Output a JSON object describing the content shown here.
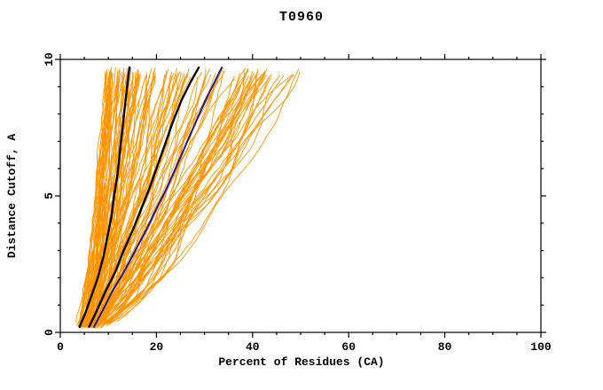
{
  "page": {
    "background": "#ffffff",
    "frame_color": "#000000",
    "text_color": "#000000"
  },
  "chart_data": {
    "type": "line",
    "title": "T0960",
    "xlabel": "Percent of Residues (CA)",
    "ylabel": "Distance Cutoff, A",
    "xlim": [
      0,
      100
    ],
    "ylim": [
      0,
      10
    ],
    "xticks": [
      0,
      20,
      40,
      60,
      80,
      100
    ],
    "xtick_labels": [
      "0",
      "20",
      "40",
      "60",
      "80",
      "100"
    ],
    "xminor_step": 5,
    "yticks": [
      0,
      5,
      10
    ],
    "ytick_labels": [
      "0",
      "5",
      "10"
    ],
    "yminor_step": 1,
    "grid": false,
    "legend": "none",
    "series": [
      {
        "name": "highlight-black-1",
        "color": "#000000",
        "width": 2.4,
        "points": [
          [
            4,
            0.2
          ],
          [
            5.2,
            0.7
          ],
          [
            6.6,
            1.4
          ],
          [
            7.8,
            2
          ],
          [
            9,
            2.8
          ],
          [
            9.8,
            3.5
          ],
          [
            10.6,
            4.2
          ],
          [
            11.2,
            5
          ],
          [
            11.9,
            5.8
          ],
          [
            12.4,
            6.6
          ],
          [
            12.9,
            7.4
          ],
          [
            13.4,
            8.2
          ],
          [
            13.9,
            9
          ],
          [
            14.4,
            9.7
          ]
        ]
      },
      {
        "name": "highlight-black-2",
        "color": "#000000",
        "width": 2.4,
        "points": [
          [
            6,
            0.2
          ],
          [
            7.6,
            0.8
          ],
          [
            9.4,
            1.5
          ],
          [
            11.4,
            2.2
          ],
          [
            13.2,
            3
          ],
          [
            15.2,
            3.8
          ],
          [
            17,
            4.6
          ],
          [
            18.6,
            5.3
          ],
          [
            20.2,
            6.1
          ],
          [
            21.8,
            6.9
          ],
          [
            23.4,
            7.7
          ],
          [
            25.2,
            8.5
          ],
          [
            27.2,
            9.2
          ],
          [
            28.8,
            9.7
          ]
        ]
      },
      {
        "name": "highlight-blue",
        "color": "#1a1a99",
        "width": 2,
        "points": [
          [
            7,
            0.2
          ],
          [
            8.8,
            0.8
          ],
          [
            10.8,
            1.5
          ],
          [
            13.2,
            2.2
          ],
          [
            15.6,
            3
          ],
          [
            18,
            3.8
          ],
          [
            20.2,
            4.6
          ],
          [
            22.2,
            5.3
          ],
          [
            24.2,
            6.1
          ],
          [
            26.2,
            6.9
          ],
          [
            28.2,
            7.7
          ],
          [
            30.2,
            8.5
          ],
          [
            32.2,
            9.2
          ],
          [
            33.6,
            9.7
          ]
        ]
      }
    ],
    "ensemble": {
      "name": "orange-models",
      "color": "#ff9400",
      "count": 130,
      "seed": 1337,
      "line_width": 0.9,
      "start_percent_range": [
        3,
        7
      ],
      "end_percent_min": 10,
      "end_percent_spread": 42
    }
  }
}
